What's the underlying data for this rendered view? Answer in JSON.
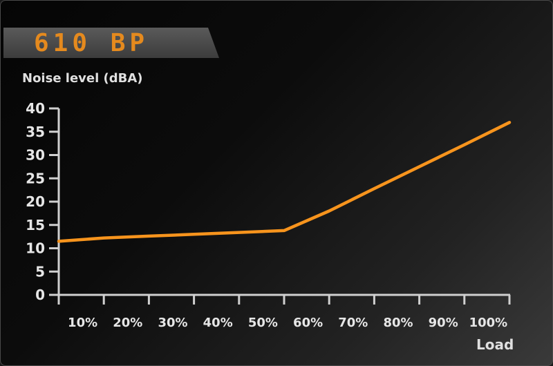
{
  "banner": {
    "title": "610 BP"
  },
  "chart_data": {
    "type": "line",
    "ylabel": "Noise level (dBA)",
    "xlabel": "Load",
    "ylim": [
      0,
      40
    ],
    "yticks": [
      "0",
      "5",
      "10",
      "15",
      "20",
      "25",
      "30",
      "35",
      "40"
    ],
    "xlim": [
      0,
      100
    ],
    "xticks": [
      "10%",
      "20%",
      "30%",
      "40%",
      "50%",
      "60%",
      "70%",
      "80%",
      "90%",
      "100%"
    ],
    "grid": true,
    "series": [
      {
        "color": "#f7941d",
        "x": [
          0,
          10,
          20,
          30,
          40,
          50,
          60,
          70,
          80,
          90,
          100
        ],
        "y": [
          11.5,
          12.2,
          12.6,
          13.0,
          13.4,
          13.8,
          18.0,
          22.8,
          27.5,
          32.2,
          37.0
        ]
      }
    ]
  }
}
